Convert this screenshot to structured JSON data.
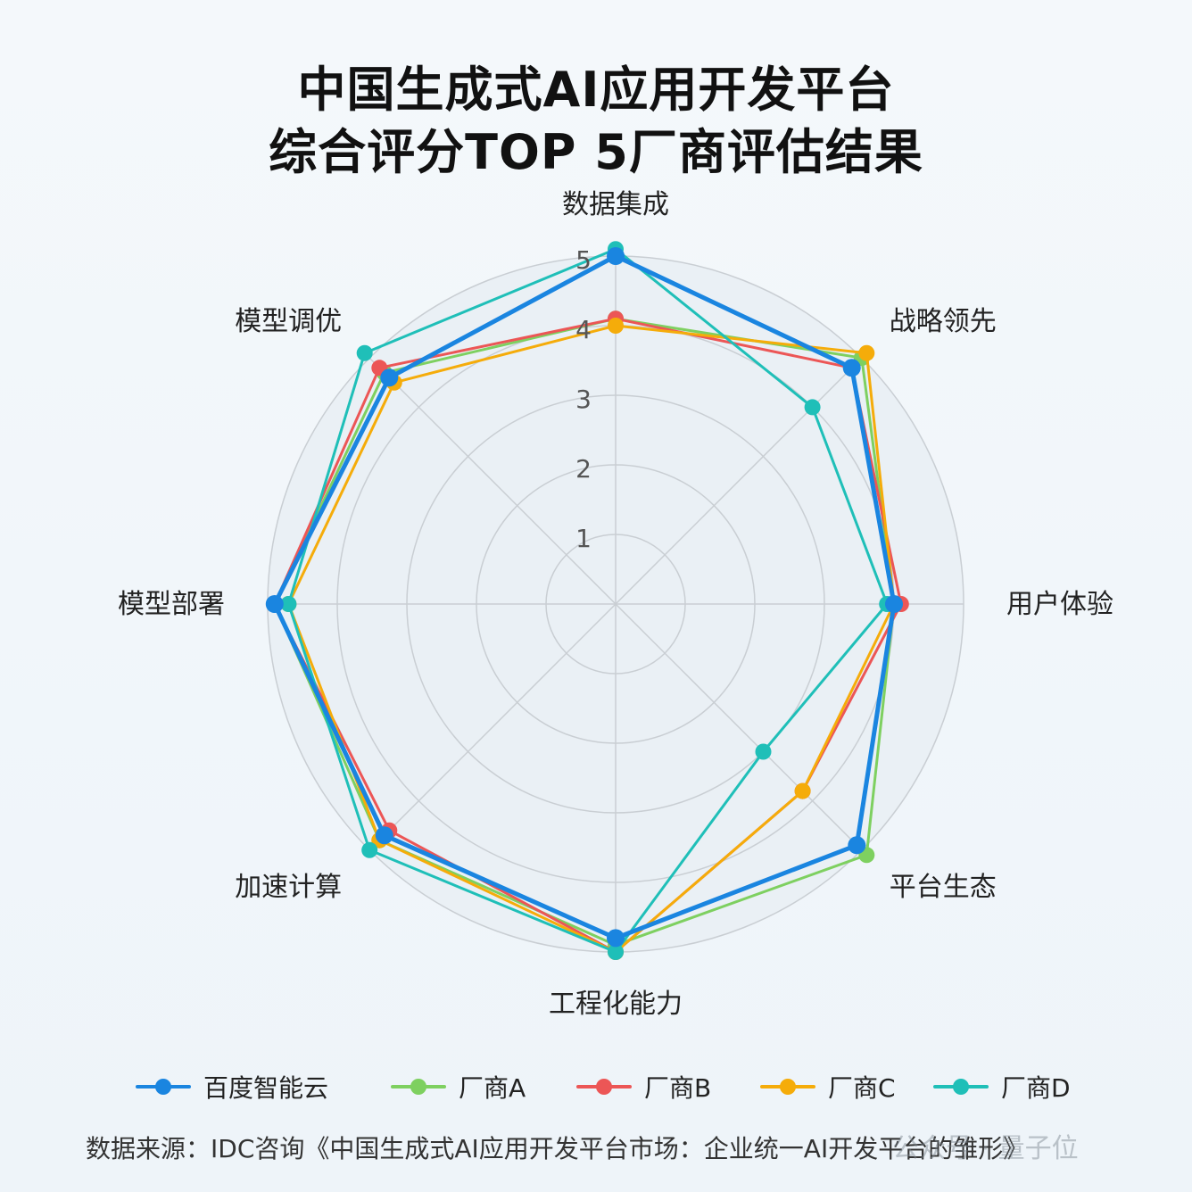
{
  "title_line1": "中国生成式AI应用开发平台",
  "title_line2": "综合评分TOP 5厂商评估结果",
  "source": "数据来源：IDC咨询《中国生成式AI应用开发平台市场：企业统一AI开发平台的雏形》",
  "watermark": "公众号 · 量子位",
  "chart_data": {
    "type": "radar",
    "axes": [
      "数据集成",
      "战略领先",
      "用户体验",
      "平台生态",
      "工程化能力",
      "加速计算",
      "模型部署",
      "模型调优"
    ],
    "ticks": [
      "1",
      "2",
      "3",
      "4",
      "5"
    ],
    "r_range": [
      0,
      5
    ],
    "grid": true,
    "legend_position": "bottom",
    "series": [
      {
        "name": "百度智能云",
        "color": "#1a85e0",
        "values": [
          5.0,
          4.8,
          4.0,
          4.9,
          4.8,
          4.7,
          4.9,
          4.6
        ]
      },
      {
        "name": "厂商A",
        "color": "#7ed060",
        "values": [
          4.1,
          5.0,
          4.0,
          5.1,
          4.9,
          4.8,
          4.9,
          4.7
        ]
      },
      {
        "name": "厂商B",
        "color": "#ec5656",
        "values": [
          4.1,
          4.8,
          4.1,
          3.8,
          5.0,
          4.6,
          4.9,
          4.8
        ]
      },
      {
        "name": "厂商C",
        "color": "#f5ac0a",
        "values": [
          4.0,
          5.1,
          4.0,
          3.8,
          5.0,
          4.8,
          4.7,
          4.5
        ]
      },
      {
        "name": "厂商D",
        "color": "#1fbfb8",
        "values": [
          5.1,
          4.0,
          3.9,
          3.0,
          5.0,
          5.0,
          4.7,
          5.1
        ]
      }
    ]
  }
}
